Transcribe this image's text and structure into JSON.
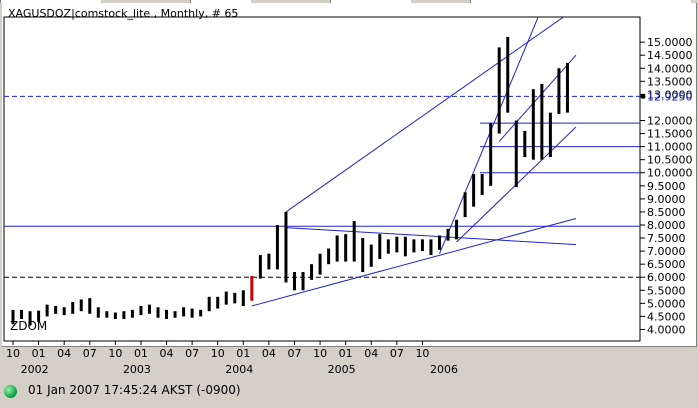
{
  "window": {
    "title": "XAGUSDOZ|comstock_lite , Monthly, # 65"
  },
  "status": {
    "datetime": "01 Jan 2007 17:45:24",
    "timezone": "AKST (-0900)",
    "indicator_color": "#1aa84a"
  },
  "chart_data": {
    "type": "bar",
    "subtype": "ohlc-monthly",
    "symbol": "XAGUSDOZ",
    "watermark": "ZDOM",
    "ylim": [
      3.75,
      15.35
    ],
    "y_ticks": [
      "15.0000",
      "14.5000",
      "14.0000",
      "13.5000",
      "13.0000",
      "12.0000",
      "11.5000",
      "11.0000",
      "10.5000",
      "10.0000",
      "9.5000",
      "9.0000",
      "8.5000",
      "8.0000",
      "7.5000",
      "7.0000",
      "6.5000",
      "6.0000",
      "5.5000",
      "5.0000",
      "4.5000",
      "4.0000"
    ],
    "last_price_label": "12.9250",
    "last_price": 12.925,
    "x_month_ticks": [
      "10",
      "01",
      "04",
      "07",
      "10",
      "01",
      "04",
      "07",
      "10",
      "01",
      "04",
      "07",
      "10",
      "01",
      "04",
      "07",
      "10"
    ],
    "x_year_labels": [
      "2002",
      "2003",
      "2004",
      "2005",
      "2006"
    ],
    "ohlc": [
      {
        "high": 4.75,
        "low": 4.2
      },
      {
        "high": 4.75,
        "low": 4.4
      },
      {
        "high": 4.7,
        "low": 4.15
      },
      {
        "high": 4.72,
        "low": 4.3
      },
      {
        "high": 4.95,
        "low": 4.5
      },
      {
        "high": 4.9,
        "low": 4.6
      },
      {
        "high": 4.85,
        "low": 4.55
      },
      {
        "high": 5.05,
        "low": 4.6
      },
      {
        "high": 5.15,
        "low": 4.7
      },
      {
        "high": 5.2,
        "low": 4.6
      },
      {
        "high": 4.85,
        "low": 4.45
      },
      {
        "high": 4.7,
        "low": 4.45
      },
      {
        "high": 4.65,
        "low": 4.4
      },
      {
        "high": 4.7,
        "low": 4.4
      },
      {
        "high": 4.75,
        "low": 4.45
      },
      {
        "high": 4.9,
        "low": 4.55
      },
      {
        "high": 4.95,
        "low": 4.6
      },
      {
        "high": 4.85,
        "low": 4.45
      },
      {
        "high": 4.75,
        "low": 4.4
      },
      {
        "high": 4.7,
        "low": 4.45
      },
      {
        "high": 4.85,
        "low": 4.5
      },
      {
        "high": 4.8,
        "low": 4.45
      },
      {
        "high": 4.75,
        "low": 4.5
      },
      {
        "high": 5.25,
        "low": 4.7
      },
      {
        "high": 5.25,
        "low": 4.8
      },
      {
        "high": 5.45,
        "low": 4.95
      },
      {
        "high": 5.4,
        "low": 5.0
      },
      {
        "high": 5.5,
        "low": 4.9
      },
      {
        "high": 6.05,
        "low": 5.1
      },
      {
        "high": 6.85,
        "low": 5.95
      },
      {
        "high": 6.9,
        "low": 6.3
      },
      {
        "high": 8.0,
        "low": 6.3
      },
      {
        "high": 8.5,
        "low": 5.8
      },
      {
        "high": 6.2,
        "low": 5.5
      },
      {
        "high": 6.2,
        "low": 5.5
      },
      {
        "high": 6.5,
        "low": 5.9
      },
      {
        "high": 6.9,
        "low": 6.1
      },
      {
        "high": 7.1,
        "low": 6.5
      },
      {
        "high": 7.6,
        "low": 6.6
      },
      {
        "high": 7.65,
        "low": 6.6
      },
      {
        "high": 8.15,
        "low": 6.6
      },
      {
        "high": 7.5,
        "low": 6.2
      },
      {
        "high": 7.25,
        "low": 6.4
      },
      {
        "high": 7.65,
        "low": 6.7
      },
      {
        "high": 7.45,
        "low": 6.9
      },
      {
        "high": 7.55,
        "low": 6.95
      },
      {
        "high": 7.55,
        "low": 6.8
      },
      {
        "high": 7.45,
        "low": 6.95
      },
      {
        "high": 7.45,
        "low": 7.0
      },
      {
        "high": 7.45,
        "low": 6.85
      },
      {
        "high": 7.6,
        "low": 7.05
      },
      {
        "high": 7.85,
        "low": 7.4
      },
      {
        "high": 8.2,
        "low": 7.45
      },
      {
        "high": 9.25,
        "low": 8.3
      },
      {
        "high": 9.95,
        "low": 8.7
      },
      {
        "high": 9.95,
        "low": 9.15
      },
      {
        "high": 11.9,
        "low": 9.5
      },
      {
        "high": 14.8,
        "low": 11.5
      },
      {
        "high": 15.2,
        "low": 12.3
      },
      {
        "high": 12.0,
        "low": 9.45
      },
      {
        "high": 11.6,
        "low": 10.6
      },
      {
        "high": 13.2,
        "low": 10.5
      },
      {
        "high": 13.4,
        "low": 10.5
      },
      {
        "high": 12.3,
        "low": 10.6
      },
      {
        "high": 14.0,
        "low": 12.25
      },
      {
        "high": 14.2,
        "low": 12.3
      }
    ],
    "highlight_bar_index": 28,
    "highlight_color": "#cc0000",
    "bar_color": "#000000",
    "dashed_levels": [
      12.925,
      6.0
    ],
    "horizontal_levels": [
      7.95,
      10.0,
      11.0,
      11.9
    ],
    "trendlines": [
      {
        "from": [
          32,
          8.5
        ],
        "to": [
          66,
          16.3
        ]
      },
      {
        "from": [
          28,
          4.9
        ],
        "to": [
          66,
          8.25
        ]
      },
      {
        "from": [
          32,
          7.9
        ],
        "to": [
          66,
          7.25
        ]
      },
      {
        "from": [
          50,
          6.9
        ],
        "to": [
          62,
          16.3
        ]
      },
      {
        "from": [
          52,
          7.35
        ],
        "to": [
          66,
          11.75
        ]
      },
      {
        "from": [
          57,
          11.2
        ],
        "to": [
          66,
          14.5
        ]
      }
    ],
    "grid": false,
    "line_color": "#2222cc"
  }
}
